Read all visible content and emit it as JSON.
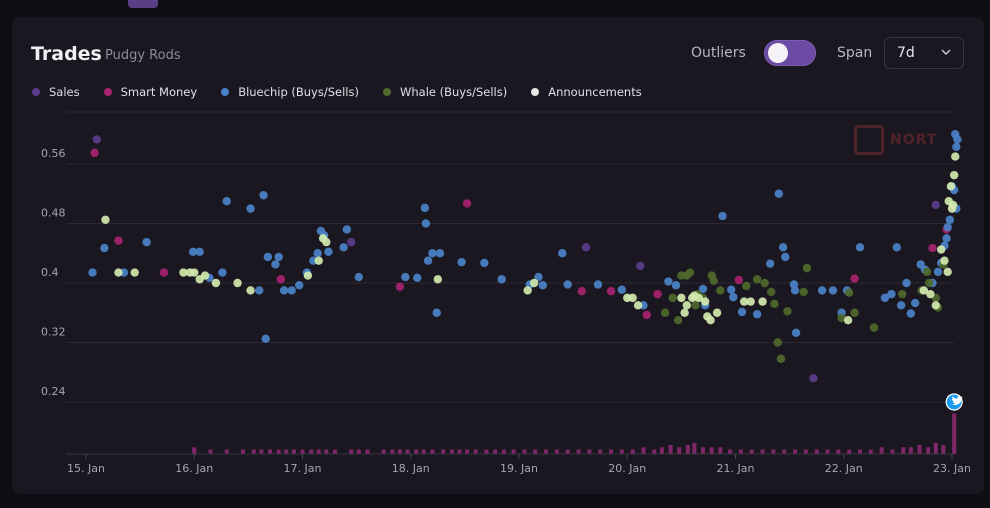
{
  "header": {
    "title": "Trades",
    "subtitle": "Pudgy Rods"
  },
  "controls": {
    "outliers_label": "Outliers",
    "outliers_on": true,
    "span_label": "Span",
    "span_value": "7d",
    "chevron_icon": "chevron-down-icon"
  },
  "watermark": {
    "text": "NORT"
  },
  "colors": {
    "Sales": "#5b3d8c",
    "Smart Money": "#a8236f",
    "Bluechip": "#4a83c9",
    "Whale": "#4e6a2c",
    "Announcements": "#d3e9ae",
    "volume": "#8a2a72",
    "twitter": "#1d9bf0"
  },
  "chart_data": {
    "type": "scatter",
    "title": "Trades",
    "subtitle": "Pudgy Rods",
    "xlabel": "",
    "ylabel": "",
    "x_unit": "days since 15 Jan",
    "xlim": [
      0,
      8.1
    ],
    "ylim": [
      0.2,
      0.62
    ],
    "yticks": [
      0.56,
      0.48,
      0.4,
      0.32,
      0.24
    ],
    "ytick_labels": [
      "0.56",
      "0.48",
      "0.4",
      "0.32",
      "0.24"
    ],
    "xticks": [
      0,
      1,
      2,
      3,
      4,
      5,
      6,
      7,
      8
    ],
    "xtick_labels": [
      "15. Jan",
      "16. Jan",
      "17. Jan",
      "18. Jan",
      "19. Jan",
      "20. Jan",
      "21. Jan",
      "22. Jan",
      "23. Jan"
    ],
    "legend": [
      "Sales",
      "Smart Money",
      "Bluechip (Buys/Sells)",
      "Whale (Buys/Sells)",
      "Announcements"
    ],
    "series": [
      {
        "name": "Sales",
        "key": "Sales",
        "points": [
          [
            0.1,
            0.593
          ],
          [
            2.45,
            0.455
          ],
          [
            4.62,
            0.448
          ],
          [
            5.12,
            0.423
          ],
          [
            6.72,
            0.272
          ],
          [
            7.85,
            0.505
          ]
        ]
      },
      {
        "name": "Smart Money",
        "key": "Smart Money",
        "points": [
          [
            0.08,
            0.575
          ],
          [
            0.3,
            0.457
          ],
          [
            0.72,
            0.414
          ],
          [
            1.8,
            0.405
          ],
          [
            3.52,
            0.507
          ],
          [
            4.85,
            0.389
          ],
          [
            4.58,
            0.389
          ],
          [
            5.18,
            0.357
          ],
          [
            5.28,
            0.385
          ],
          [
            6.03,
            0.404
          ],
          [
            7.1,
            0.406
          ],
          [
            7.82,
            0.447
          ],
          [
            7.95,
            0.472
          ],
          [
            2.9,
            0.395
          ]
        ]
      },
      {
        "name": "Bluechip (Buys/Sells)",
        "key": "Bluechip",
        "points": [
          [
            0.06,
            0.414
          ],
          [
            0.17,
            0.447
          ],
          [
            0.35,
            0.414
          ],
          [
            0.56,
            0.455
          ],
          [
            0.99,
            0.442
          ],
          [
            1.05,
            0.442
          ],
          [
            1.14,
            0.407
          ],
          [
            1.26,
            0.414
          ],
          [
            1.3,
            0.51
          ],
          [
            1.52,
            0.5
          ],
          [
            1.6,
            0.39
          ],
          [
            1.64,
            0.518
          ],
          [
            1.66,
            0.325
          ],
          [
            1.68,
            0.435
          ],
          [
            1.75,
            0.425
          ],
          [
            1.78,
            0.435
          ],
          [
            1.83,
            0.39
          ],
          [
            1.9,
            0.39
          ],
          [
            1.97,
            0.397
          ],
          [
            2.04,
            0.414
          ],
          [
            2.1,
            0.43
          ],
          [
            2.14,
            0.44
          ],
          [
            2.17,
            0.47
          ],
          [
            2.2,
            0.464
          ],
          [
            2.24,
            0.442
          ],
          [
            2.38,
            0.448
          ],
          [
            2.41,
            0.472
          ],
          [
            2.52,
            0.408
          ],
          [
            2.95,
            0.408
          ],
          [
            3.06,
            0.407
          ],
          [
            3.13,
            0.501
          ],
          [
            3.14,
            0.48
          ],
          [
            3.16,
            0.43
          ],
          [
            3.2,
            0.44
          ],
          [
            3.24,
            0.36
          ],
          [
            3.27,
            0.44
          ],
          [
            3.47,
            0.428
          ],
          [
            3.68,
            0.427
          ],
          [
            3.84,
            0.405
          ],
          [
            4.1,
            0.398
          ],
          [
            4.18,
            0.408
          ],
          [
            4.22,
            0.397
          ],
          [
            4.4,
            0.44
          ],
          [
            4.45,
            0.398
          ],
          [
            4.73,
            0.398
          ],
          [
            4.95,
            0.391
          ],
          [
            5.15,
            0.37
          ],
          [
            5.38,
            0.402
          ],
          [
            5.45,
            0.397
          ],
          [
            5.7,
            0.392
          ],
          [
            5.72,
            0.37
          ],
          [
            5.88,
            0.49
          ],
          [
            5.96,
            0.391
          ],
          [
            5.98,
            0.381
          ],
          [
            6.06,
            0.361
          ],
          [
            6.2,
            0.358
          ],
          [
            6.32,
            0.426
          ],
          [
            6.4,
            0.52
          ],
          [
            6.44,
            0.448
          ],
          [
            6.46,
            0.435
          ],
          [
            6.54,
            0.398
          ],
          [
            6.55,
            0.39
          ],
          [
            6.56,
            0.333
          ],
          [
            6.8,
            0.39
          ],
          [
            6.9,
            0.39
          ],
          [
            6.98,
            0.36
          ],
          [
            7.03,
            0.39
          ],
          [
            7.15,
            0.448
          ],
          [
            7.38,
            0.38
          ],
          [
            7.44,
            0.385
          ],
          [
            7.49,
            0.448
          ],
          [
            7.53,
            0.37
          ],
          [
            7.58,
            0.4
          ],
          [
            7.62,
            0.359
          ],
          [
            7.66,
            0.373
          ],
          [
            7.71,
            0.425
          ],
          [
            7.75,
            0.418
          ],
          [
            7.82,
            0.4
          ],
          [
            7.87,
            0.415
          ],
          [
            7.9,
            0.427
          ],
          [
            7.93,
            0.45
          ],
          [
            7.95,
            0.46
          ],
          [
            7.96,
            0.475
          ],
          [
            7.98,
            0.485
          ],
          [
            8.0,
            0.53
          ],
          [
            8.02,
            0.525
          ],
          [
            8.04,
            0.5
          ],
          [
            8.04,
            0.583
          ],
          [
            8.05,
            0.593
          ],
          [
            8.03,
            0.6
          ]
        ]
      },
      {
        "name": "Whale (Buys/Sells)",
        "key": "Whale",
        "points": [
          [
            5.35,
            0.36
          ],
          [
            5.42,
            0.38
          ],
          [
            5.47,
            0.35
          ],
          [
            5.5,
            0.41
          ],
          [
            5.55,
            0.41
          ],
          [
            5.58,
            0.414
          ],
          [
            5.63,
            0.37
          ],
          [
            5.65,
            0.385
          ],
          [
            5.7,
            0.38
          ],
          [
            5.78,
            0.41
          ],
          [
            5.8,
            0.403
          ],
          [
            5.86,
            0.39
          ],
          [
            6.1,
            0.396
          ],
          [
            6.2,
            0.405
          ],
          [
            6.27,
            0.4
          ],
          [
            6.33,
            0.388
          ],
          [
            6.36,
            0.372
          ],
          [
            6.39,
            0.32
          ],
          [
            6.42,
            0.298
          ],
          [
            6.48,
            0.362
          ],
          [
            6.63,
            0.388
          ],
          [
            6.66,
            0.42
          ],
          [
            6.98,
            0.353
          ],
          [
            7.05,
            0.387
          ],
          [
            7.1,
            0.36
          ],
          [
            7.28,
            0.34
          ],
          [
            7.54,
            0.385
          ],
          [
            7.72,
            0.39
          ],
          [
            7.77,
            0.415
          ],
          [
            7.79,
            0.4
          ],
          [
            7.85,
            0.38
          ],
          [
            7.87,
            0.367
          ],
          [
            7.92,
            0.425
          ]
        ]
      },
      {
        "name": "Announcements",
        "key": "Announcements",
        "points": [
          [
            0.18,
            0.485
          ],
          [
            0.3,
            0.414
          ],
          [
            0.45,
            0.414
          ],
          [
            0.9,
            0.414
          ],
          [
            0.96,
            0.414
          ],
          [
            1.0,
            0.414
          ],
          [
            1.05,
            0.405
          ],
          [
            1.1,
            0.41
          ],
          [
            1.2,
            0.4
          ],
          [
            1.4,
            0.4
          ],
          [
            1.52,
            0.39
          ],
          [
            2.05,
            0.41
          ],
          [
            2.15,
            0.43
          ],
          [
            2.19,
            0.46
          ],
          [
            2.22,
            0.455
          ],
          [
            3.25,
            0.405
          ],
          [
            4.08,
            0.39
          ],
          [
            4.14,
            0.4
          ],
          [
            5.0,
            0.38
          ],
          [
            5.05,
            0.38
          ],
          [
            5.1,
            0.37
          ],
          [
            5.5,
            0.38
          ],
          [
            5.53,
            0.36
          ],
          [
            5.55,
            0.37
          ],
          [
            5.6,
            0.38
          ],
          [
            5.62,
            0.383
          ],
          [
            5.66,
            0.38
          ],
          [
            5.72,
            0.375
          ],
          [
            5.74,
            0.355
          ],
          [
            5.77,
            0.35
          ],
          [
            5.83,
            0.36
          ],
          [
            6.08,
            0.375
          ],
          [
            6.14,
            0.375
          ],
          [
            6.25,
            0.375
          ],
          [
            7.04,
            0.35
          ],
          [
            7.74,
            0.39
          ],
          [
            7.8,
            0.385
          ],
          [
            7.85,
            0.37
          ],
          [
            7.93,
            0.43
          ],
          [
            7.96,
            0.415
          ],
          [
            7.97,
            0.51
          ],
          [
            7.99,
            0.53
          ],
          [
            8.0,
            0.5
          ],
          [
            8.01,
            0.505
          ],
          [
            8.02,
            0.545
          ],
          [
            8.03,
            0.57
          ],
          [
            7.9,
            0.445
          ]
        ]
      }
    ],
    "volume": {
      "x": [
        1.0,
        1.15,
        1.3,
        1.45,
        1.55,
        1.62,
        1.7,
        1.78,
        1.85,
        1.92,
        2.0,
        2.08,
        2.15,
        2.22,
        2.3,
        2.45,
        2.52,
        2.6,
        2.75,
        2.83,
        2.9,
        2.97,
        3.05,
        3.12,
        3.2,
        3.3,
        3.38,
        3.45,
        3.52,
        3.6,
        3.7,
        3.78,
        3.86,
        3.95,
        4.05,
        4.15,
        4.25,
        4.35,
        4.45,
        4.55,
        4.65,
        4.75,
        4.85,
        4.95,
        5.05,
        5.15,
        5.25,
        5.32,
        5.4,
        5.48,
        5.56,
        5.62,
        5.7,
        5.78,
        5.86,
        5.95,
        6.05,
        6.15,
        6.25,
        6.35,
        6.45,
        6.55,
        6.65,
        6.75,
        6.85,
        6.95,
        7.05,
        7.15,
        7.25,
        7.35,
        7.45,
        7.55,
        7.62,
        7.7,
        7.78,
        7.85,
        7.92,
        8.02
      ],
      "v": [
        3,
        2,
        2,
        2,
        2,
        2,
        2,
        2,
        2,
        2,
        2,
        2,
        2,
        2,
        2,
        2,
        2,
        2,
        2,
        2,
        2,
        2,
        2,
        2,
        2,
        2,
        2,
        2,
        2,
        2,
        2,
        2,
        2,
        2,
        2,
        2,
        2,
        2,
        2,
        2,
        2,
        2,
        2,
        2,
        2,
        3,
        2,
        3,
        4,
        3,
        4,
        5,
        3,
        3,
        3,
        2,
        2,
        2,
        2,
        2,
        2,
        2,
        2,
        2,
        2,
        2,
        2,
        2,
        2,
        3,
        2,
        3,
        3,
        4,
        3,
        5,
        4,
        18
      ]
    },
    "announcement_marker": {
      "x": 8.02,
      "y": 0.24,
      "icon": "twitter-icon"
    }
  }
}
